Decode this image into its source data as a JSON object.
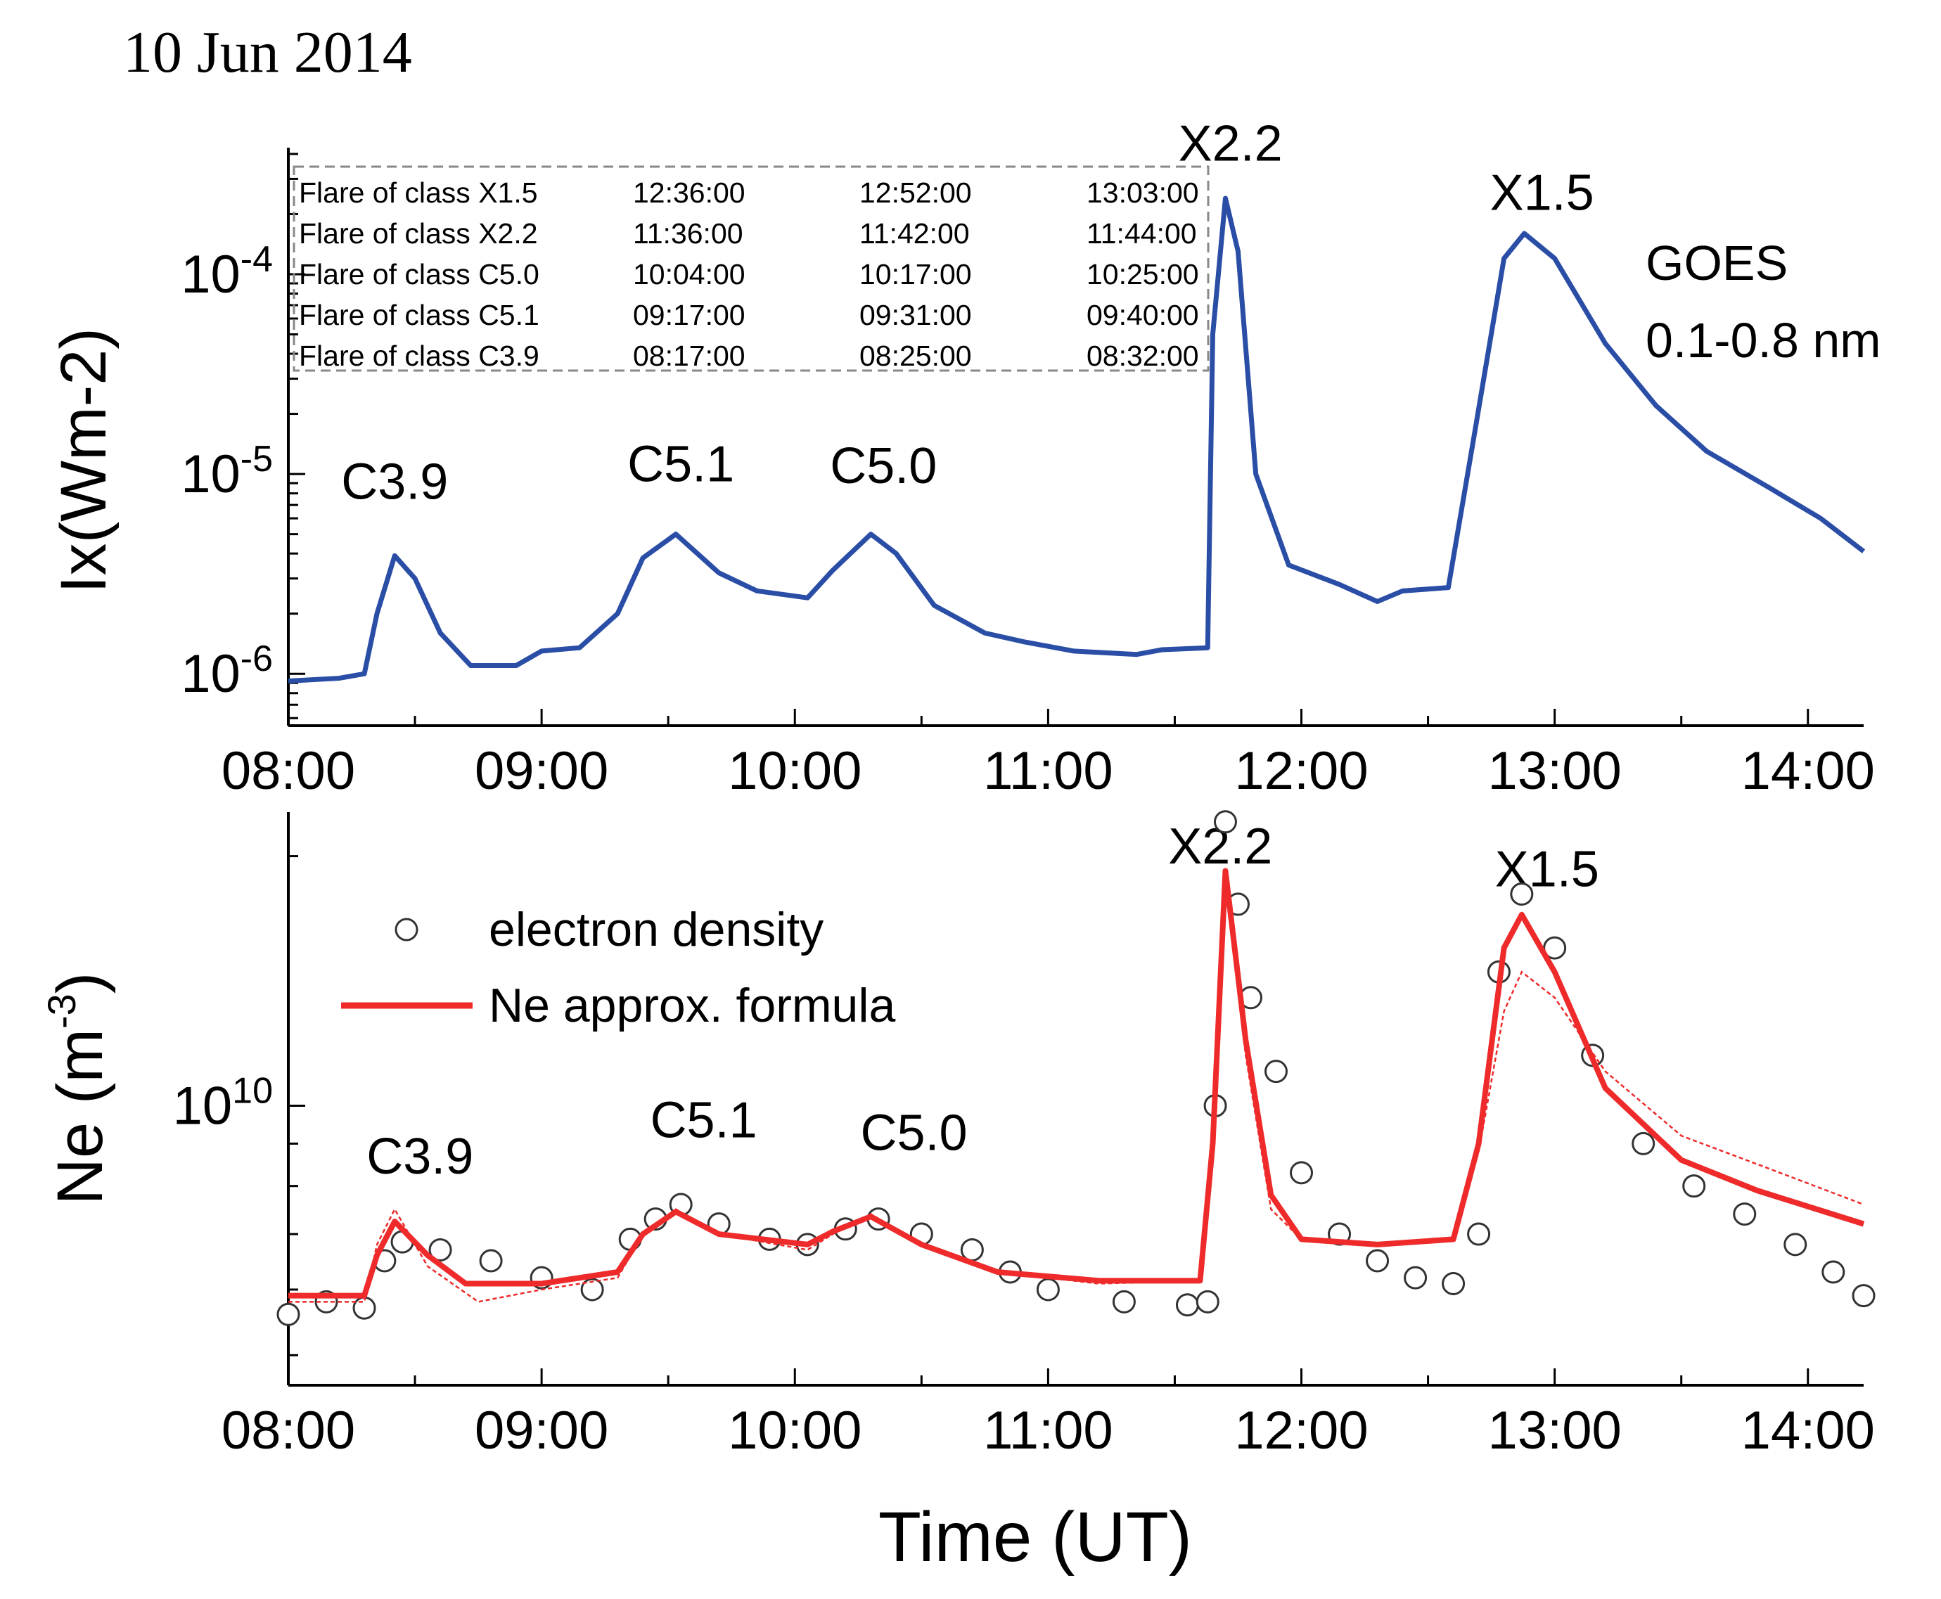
{
  "date_label": "10 Jun 2014",
  "colors": {
    "goes": "#2a4ea6",
    "model": "#ee2a2a",
    "points": "#333333"
  },
  "chart_data": [
    {
      "type": "line",
      "name": "goes-xray",
      "xlabel": "",
      "ylabel": "Ix(Wm-2)",
      "yscale": "log",
      "x_ticks": [
        "08:00",
        "09:00",
        "10:00",
        "11:00",
        "12:00",
        "13:00",
        "14:00"
      ],
      "y_ticks": [
        {
          "value": 1e-06,
          "base": "10",
          "exp": "-6"
        },
        {
          "value": 1e-05,
          "base": "10",
          "exp": "-5"
        },
        {
          "value": 0.0001,
          "base": "10",
          "exp": "-4"
        }
      ],
      "xlim": [
        8.0,
        14.22
      ],
      "ylim": [
        5.5e-07,
        0.00043
      ],
      "annotation": [
        "GOES",
        "0.1-0.8 nm"
      ],
      "flare_labels": [
        {
          "text": "C3.9",
          "x": 8.42,
          "y": 7.5e-06
        },
        {
          "text": "C5.1",
          "x": 9.55,
          "y": 9.2e-06
        },
        {
          "text": "C5.0",
          "x": 10.35,
          "y": 9e-06
        },
        {
          "text": "X2.2",
          "x": 11.72,
          "y": 0.00037
        },
        {
          "text": "X1.5",
          "x": 12.95,
          "y": 0.00021
        }
      ],
      "table": [
        [
          "Flare of class X1.5",
          "12:36:00",
          "12:52:00",
          "13:03:00"
        ],
        [
          "Flare of class X2.2",
          "11:36:00",
          "11:42:00",
          "11:44:00"
        ],
        [
          "Flare of class C5.0",
          "10:04:00",
          "10:17:00",
          "10:25:00"
        ],
        [
          "Flare of class C5.1",
          "09:17:00",
          "09:31:00",
          "09:40:00"
        ],
        [
          "Flare of class C3.9",
          "08:17:00",
          "08:25:00",
          "08:32:00"
        ]
      ],
      "series": [
        {
          "name": "GOES 0.1-0.8 nm",
          "points": [
            [
              8.0,
              9.2e-07
            ],
            [
              8.2,
              9.5e-07
            ],
            [
              8.3,
              1e-06
            ],
            [
              8.35,
              2e-06
            ],
            [
              8.42,
              3.9e-06
            ],
            [
              8.5,
              3e-06
            ],
            [
              8.6,
              1.6e-06
            ],
            [
              8.72,
              1.1e-06
            ],
            [
              8.9,
              1.1e-06
            ],
            [
              9.0,
              1.3e-06
            ],
            [
              9.15,
              1.35e-06
            ],
            [
              9.3,
              2e-06
            ],
            [
              9.4,
              3.8e-06
            ],
            [
              9.53,
              5e-06
            ],
            [
              9.7,
              3.2e-06
            ],
            [
              9.85,
              2.6e-06
            ],
            [
              10.05,
              2.4e-06
            ],
            [
              10.15,
              3.3e-06
            ],
            [
              10.3,
              5e-06
            ],
            [
              10.4,
              4e-06
            ],
            [
              10.55,
              2.2e-06
            ],
            [
              10.75,
              1.6e-06
            ],
            [
              10.9,
              1.45e-06
            ],
            [
              11.1,
              1.3e-06
            ],
            [
              11.35,
              1.25e-06
            ],
            [
              11.45,
              1.32e-06
            ],
            [
              11.63,
              1.35e-06
            ],
            [
              11.65,
              5e-05
            ],
            [
              11.7,
              0.00024
            ],
            [
              11.75,
              0.00013
            ],
            [
              11.82,
              1e-05
            ],
            [
              11.95,
              3.5e-06
            ],
            [
              12.15,
              2.8e-06
            ],
            [
              12.3,
              2.3e-06
            ],
            [
              12.4,
              2.6e-06
            ],
            [
              12.58,
              2.7e-06
            ],
            [
              12.68,
              1.5e-05
            ],
            [
              12.8,
              0.00012
            ],
            [
              12.88,
              0.00016
            ],
            [
              13.0,
              0.00012
            ],
            [
              13.2,
              4.5e-05
            ],
            [
              13.4,
              2.2e-05
            ],
            [
              13.6,
              1.3e-05
            ],
            [
              13.85,
              8.5e-06
            ],
            [
              14.05,
              6e-06
            ],
            [
              14.22,
              4.1e-06
            ]
          ]
        }
      ]
    },
    {
      "type": "scatter",
      "name": "electron-density",
      "xlabel": "Time (UT)",
      "ylabel": "Ne (m",
      "ylabel_exp": "-3",
      "ylabel_close": ")",
      "yscale": "log",
      "x_ticks": [
        "08:00",
        "09:00",
        "10:00",
        "11:00",
        "12:00",
        "13:00",
        "14:00"
      ],
      "y_ticks": [
        {
          "value": 10000000000.0,
          "base": "10",
          "exp": "10"
        }
      ],
      "xlim": [
        8.0,
        14.22
      ],
      "ylim": [
        4600000000.0,
        22600000000.0
      ],
      "legend": [
        "electron density",
        "Ne approx. formula"
      ],
      "flare_labels": [
        {
          "text": "C3.9",
          "x": 8.52,
          "y": 8280000000.0
        },
        {
          "text": "C5.1",
          "x": 9.64,
          "y": 9160000000.0
        },
        {
          "text": "C5.0",
          "x": 10.47,
          "y": 8840000000.0
        },
        {
          "text": "X2.2",
          "x": 11.68,
          "y": 19600000000.0
        },
        {
          "text": "X1.5",
          "x": 12.97,
          "y": 18400000000.0
        }
      ],
      "series": [
        {
          "name": "electron density",
          "style": "markers",
          "points": [
            [
              8.0,
              5600000000.0
            ],
            [
              8.15,
              5800000000.0
            ],
            [
              8.3,
              5700000000.0
            ],
            [
              8.38,
              6500000000.0
            ],
            [
              8.45,
              6850000000.0
            ],
            [
              8.6,
              6700000000.0
            ],
            [
              8.8,
              6500000000.0
            ],
            [
              9.0,
              6200000000.0
            ],
            [
              9.2,
              6000000000.0
            ],
            [
              9.35,
              6900000000.0
            ],
            [
              9.45,
              7300000000.0
            ],
            [
              9.55,
              7600000000.0
            ],
            [
              9.7,
              7200000000.0
            ],
            [
              9.9,
              6900000000.0
            ],
            [
              10.05,
              6800000000.0
            ],
            [
              10.2,
              7100000000.0
            ],
            [
              10.33,
              7300000000.0
            ],
            [
              10.5,
              7000000000.0
            ],
            [
              10.7,
              6700000000.0
            ],
            [
              10.85,
              6300000000.0
            ],
            [
              11.0,
              6000000000.0
            ],
            [
              11.3,
              5800000000.0
            ],
            [
              11.55,
              5750000000.0
            ],
            [
              11.63,
              5800000000.0
            ],
            [
              11.66,
              10000000000.0
            ],
            [
              11.7,
              22000000000.0
            ],
            [
              11.75,
              17500000000.0
            ],
            [
              11.8,
              13500000000.0
            ],
            [
              11.9,
              11000000000.0
            ],
            [
              12.0,
              8300000000.0
            ],
            [
              12.15,
              7000000000.0
            ],
            [
              12.3,
              6500000000.0
            ],
            [
              12.45,
              6200000000.0
            ],
            [
              12.6,
              6100000000.0
            ],
            [
              12.7,
              7000000000.0
            ],
            [
              12.78,
              14500000000.0
            ],
            [
              12.87,
              18000000000.0
            ],
            [
              13.0,
              15500000000.0
            ],
            [
              13.15,
              11500000000.0
            ],
            [
              13.35,
              9000000000.0
            ],
            [
              13.55,
              8000000000.0
            ],
            [
              13.75,
              7400000000.0
            ],
            [
              13.95,
              6800000000.0
            ],
            [
              14.1,
              6300000000.0
            ],
            [
              14.22,
              5900000000.0
            ]
          ]
        },
        {
          "name": "Ne approx. formula",
          "style": "line",
          "points": [
            [
              8.0,
              5900000000.0
            ],
            [
              8.3,
              5900000000.0
            ],
            [
              8.35,
              6600000000.0
            ],
            [
              8.42,
              7250000000.0
            ],
            [
              8.55,
              6600000000.0
            ],
            [
              8.7,
              6100000000.0
            ],
            [
              9.0,
              6100000000.0
            ],
            [
              9.3,
              6300000000.0
            ],
            [
              9.4,
              7000000000.0
            ],
            [
              9.53,
              7450000000.0
            ],
            [
              9.7,
              7000000000.0
            ],
            [
              10.05,
              6800000000.0
            ],
            [
              10.15,
              7050000000.0
            ],
            [
              10.3,
              7350000000.0
            ],
            [
              10.5,
              6800000000.0
            ],
            [
              10.8,
              6300000000.0
            ],
            [
              11.2,
              6150000000.0
            ],
            [
              11.6,
              6150000000.0
            ],
            [
              11.65,
              9000000000.0
            ],
            [
              11.7,
              19200000000.0
            ],
            [
              11.78,
              12000000000.0
            ],
            [
              11.88,
              7800000000.0
            ],
            [
              12.0,
              6900000000.0
            ],
            [
              12.3,
              6800000000.0
            ],
            [
              12.6,
              6900000000.0
            ],
            [
              12.7,
              9000000000.0
            ],
            [
              12.8,
              15500000000.0
            ],
            [
              12.87,
              17000000000.0
            ],
            [
              13.0,
              14500000000.0
            ],
            [
              13.2,
              10500000000.0
            ],
            [
              13.5,
              8600000000.0
            ],
            [
              13.8,
              7900000000.0
            ],
            [
              14.22,
              7200000000.0
            ]
          ]
        },
        {
          "name": "Ne approx. formula (thin)",
          "style": "thin-line",
          "points": [
            [
              8.0,
              5800000000.0
            ],
            [
              8.3,
              5800000000.0
            ],
            [
              8.35,
              6800000000.0
            ],
            [
              8.42,
              7500000000.0
            ],
            [
              8.55,
              6400000000.0
            ],
            [
              8.75,
              5800000000.0
            ],
            [
              9.0,
              6000000000.0
            ],
            [
              9.3,
              6200000000.0
            ],
            [
              9.4,
              7000000000.0
            ],
            [
              9.53,
              7500000000.0
            ],
            [
              9.7,
              7000000000.0
            ],
            [
              10.05,
              6700000000.0
            ],
            [
              10.15,
              7000000000.0
            ],
            [
              10.3,
              7400000000.0
            ],
            [
              10.5,
              6800000000.0
            ],
            [
              10.8,
              6300000000.0
            ],
            [
              11.2,
              6100000000.0
            ],
            [
              11.6,
              6150000000.0
            ],
            [
              11.65,
              8800000000.0
            ],
            [
              11.7,
              18500000000.0
            ],
            [
              11.78,
              11500000000.0
            ],
            [
              11.88,
              7500000000.0
            ],
            [
              12.0,
              6900000000.0
            ],
            [
              12.3,
              6800000000.0
            ],
            [
              12.6,
              6900000000.0
            ],
            [
              12.7,
              8800000000.0
            ],
            [
              12.8,
              13000000000.0
            ],
            [
              12.87,
              14500000000.0
            ],
            [
              13.0,
              13500000000.0
            ],
            [
              13.2,
              11000000000.0
            ],
            [
              13.5,
              9200000000.0
            ],
            [
              13.8,
              8500000000.0
            ],
            [
              14.22,
              7600000000.0
            ]
          ]
        }
      ]
    }
  ]
}
